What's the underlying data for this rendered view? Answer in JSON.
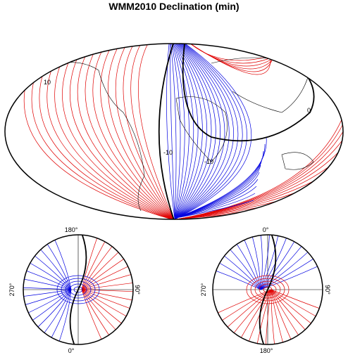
{
  "title": "WMM2010 Declination (min)",
  "main_map": {
    "contour_labels": [
      "10",
      "-10",
      "-10",
      "0"
    ]
  },
  "north_polar": {
    "labels": {
      "top": "180°",
      "left": "270°",
      "right": "90°",
      "bottom": "0°"
    }
  },
  "south_polar": {
    "labels": {
      "top": "0°",
      "left": "270°",
      "right": "90°",
      "bottom": "180°"
    }
  }
}
